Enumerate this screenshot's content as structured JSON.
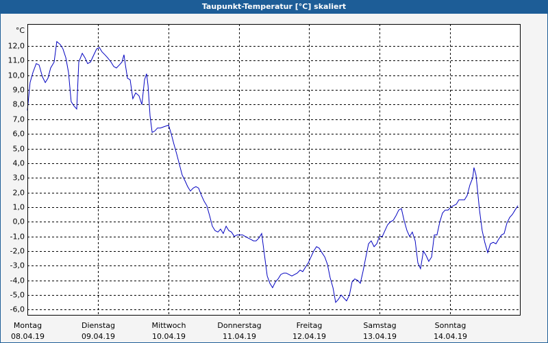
{
  "chart_data": {
    "type": "line",
    "title": "Taupunkt-Temperatur [°C] skaliert",
    "y_unit": "°C",
    "x": [
      0,
      0.9,
      1.9,
      3.0,
      4.0,
      5.1,
      6.1,
      7.0,
      7.9,
      9.1,
      10.0,
      11.2,
      12.1,
      13.1,
      14.0,
      14.9,
      15.9,
      16.8,
      17.5,
      18.7,
      19.6,
      20.5,
      21.5,
      22.4,
      23.6,
      24.5,
      25.4,
      26.4,
      27.3,
      28.5,
      29.4,
      30.3,
      31.3,
      32.2,
      32.9,
      33.4,
      34.1,
      35.0,
      35.9,
      36.9,
      38.0,
      39.0,
      39.9,
      40.6,
      41.1,
      41.8,
      42.5,
      43.4,
      44.3,
      45.3,
      46.7,
      48.1,
      49.0,
      49.9,
      50.9,
      51.8,
      52.7,
      53.7,
      54.6,
      55.5,
      56.5,
      57.4,
      58.3,
      59.3,
      60.2,
      61.1,
      62.1,
      63.0,
      63.9,
      64.9,
      65.8,
      66.7,
      67.7,
      68.6,
      69.5,
      70.5,
      71.4,
      72.3,
      73.3,
      74.2,
      75.1,
      76.1,
      77.0,
      77.9,
      78.9,
      79.8,
      80.7,
      81.7,
      82.6,
      83.5,
      84.5,
      85.4,
      86.3,
      87.3,
      88.2,
      89.1,
      90.1,
      91.0,
      91.9,
      92.9,
      93.8,
      94.7,
      95.7,
      96.6,
      97.5,
      98.5,
      99.4,
      100.3,
      101.3,
      102.2,
      103.1,
      104.1,
      105.0,
      105.9,
      106.9,
      107.8,
      108.7,
      109.7,
      110.6,
      111.5,
      112.5,
      113.4,
      114.3,
      115.3,
      116.2,
      117.1,
      118.1,
      119.0,
      119.9,
      120.9,
      121.8,
      122.7,
      123.7,
      124.6,
      125.5,
      126.5,
      127.4,
      128.3,
      129.3,
      130.2,
      131.1,
      132.1,
      133.0,
      133.9,
      134.9,
      135.8,
      136.7,
      137.7,
      138.6,
      139.5,
      140.5,
      141.4,
      142.3,
      143.3,
      144.2,
      145.1,
      146.1,
      147.0,
      147.9,
      148.9,
      149.8,
      150.7,
      151.7,
      152.1,
      152.8,
      154.0,
      154.9,
      155.8,
      156.8,
      157.7,
      158.7,
      159.6,
      160.5,
      161.5,
      162.4,
      163.3,
      164.3,
      165.2,
      166.1,
      167.1
    ],
    "series": [
      {
        "name": "Taupunkt",
        "color": "#0000c0",
        "values": [
          7.6,
          9.5,
          10.2,
          10.8,
          10.7,
          9.9,
          9.5,
          9.8,
          10.5,
          10.9,
          12.3,
          12.1,
          11.8,
          11.2,
          10.2,
          8.2,
          7.9,
          7.7,
          10.9,
          11.5,
          11.2,
          10.8,
          10.9,
          11.3,
          11.8,
          11.9,
          11.6,
          11.4,
          11.2,
          10.9,
          10.6,
          10.5,
          10.7,
          10.9,
          11.4,
          10.7,
          9.8,
          9.7,
          8.4,
          8.8,
          8.6,
          8.0,
          9.7,
          10.1,
          9.3,
          7.2,
          6.1,
          6.2,
          6.4,
          6.4,
          6.5,
          6.6,
          6.0,
          5.3,
          4.6,
          3.9,
          3.2,
          2.8,
          2.4,
          2.1,
          2.3,
          2.4,
          2.3,
          1.8,
          1.4,
          1.1,
          0.4,
          -0.3,
          -0.6,
          -0.7,
          -0.5,
          -0.8,
          -0.3,
          -0.6,
          -0.7,
          -1.0,
          -0.9,
          -0.9,
          -0.9,
          -1.0,
          -1.1,
          -1.2,
          -1.3,
          -1.3,
          -1.1,
          -0.8,
          -2.2,
          -3.7,
          -4.2,
          -4.5,
          -4.1,
          -3.9,
          -3.6,
          -3.5,
          -3.5,
          -3.6,
          -3.7,
          -3.6,
          -3.5,
          -3.3,
          -3.4,
          -3.1,
          -2.8,
          -2.4,
          -2.0,
          -1.7,
          -1.8,
          -2.1,
          -2.4,
          -2.9,
          -3.8,
          -4.5,
          -5.5,
          -5.3,
          -5.0,
          -5.2,
          -5.4,
          -5.0,
          -4.1,
          -3.9,
          -4.0,
          -4.2,
          -3.4,
          -2.4,
          -1.5,
          -1.3,
          -1.7,
          -1.5,
          -1.0,
          -1.0,
          -0.6,
          -0.2,
          0.0,
          0.1,
          0.4,
          0.8,
          0.9,
          0.1,
          -0.6,
          -1.0,
          -0.7,
          -1.3,
          -2.8,
          -3.2,
          -2.0,
          -2.3,
          -2.7,
          -2.4,
          -0.9,
          -0.9,
          0.0,
          0.6,
          0.8,
          0.8,
          1.0,
          1.1,
          1.2,
          1.5,
          1.5,
          1.5,
          1.8,
          2.5,
          3.0,
          3.7,
          3.2,
          0.8,
          -0.6,
          -1.4,
          -2.1,
          -1.5,
          -1.4,
          -1.5,
          -1.2,
          -0.9,
          -0.8,
          -0.1,
          0.3,
          0.5,
          0.8,
          1.1
        ]
      }
    ],
    "xlim": [
      0,
      168
    ],
    "xticks": [
      {
        "value": 0,
        "label": "Montag"
      },
      {
        "value": 24,
        "label": "Dienstag"
      },
      {
        "value": 48,
        "label": "Mittwoch"
      },
      {
        "value": 72,
        "label": "Donnerstag"
      },
      {
        "value": 96,
        "label": "Freitag"
      },
      {
        "value": 120,
        "label": "Samstag"
      },
      {
        "value": 144,
        "label": "Sonntag"
      }
    ],
    "xtick_dates": [
      "08.04.19",
      "09.04.19",
      "10.04.19",
      "11.04.19",
      "12.04.19",
      "13.04.19",
      "14.04.19"
    ],
    "ylim": [
      -6.4,
      13.5
    ],
    "yticks": [
      {
        "value": -6,
        "label": "-6,0"
      },
      {
        "value": -5,
        "label": "-5,0"
      },
      {
        "value": -4,
        "label": "-4,0"
      },
      {
        "value": -3,
        "label": "-3,0"
      },
      {
        "value": -2,
        "label": "-2,0"
      },
      {
        "value": -1,
        "label": "-1,0"
      },
      {
        "value": 0,
        "label": "0,0"
      },
      {
        "value": 1,
        "label": "1,0"
      },
      {
        "value": 2,
        "label": "2,0"
      },
      {
        "value": 3,
        "label": "3,0"
      },
      {
        "value": 4,
        "label": "4,0"
      },
      {
        "value": 5,
        "label": "5,0"
      },
      {
        "value": 6,
        "label": "6,0"
      },
      {
        "value": 7,
        "label": "7,0"
      },
      {
        "value": 8,
        "label": "8,0"
      },
      {
        "value": 9,
        "label": "9,0"
      },
      {
        "value": 10,
        "label": "10,0"
      },
      {
        "value": 11,
        "label": "11,0"
      },
      {
        "value": 12,
        "label": "12,0"
      }
    ],
    "grid": true
  }
}
